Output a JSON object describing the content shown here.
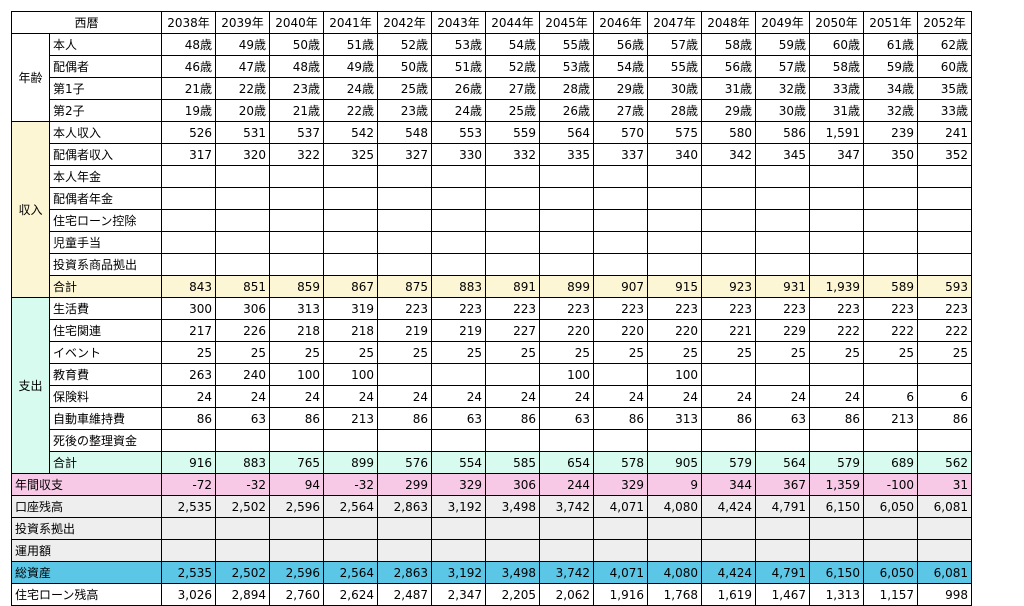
{
  "header": {
    "corner_label": "西暦",
    "years": [
      "2038年",
      "2039年",
      "2040年",
      "2041年",
      "2042年",
      "2043年",
      "2044年",
      "2045年",
      "2046年",
      "2047年",
      "2048年",
      "2049年",
      "2050年",
      "2051年",
      "2052年"
    ]
  },
  "age": {
    "group_label": "年齢",
    "rows": [
      {
        "label": "本人",
        "values": [
          "48歳",
          "49歳",
          "50歳",
          "51歳",
          "52歳",
          "53歳",
          "54歳",
          "55歳",
          "56歳",
          "57歳",
          "58歳",
          "59歳",
          "60歳",
          "61歳",
          "62歳"
        ]
      },
      {
        "label": "配偶者",
        "values": [
          "46歳",
          "47歳",
          "48歳",
          "49歳",
          "50歳",
          "51歳",
          "52歳",
          "53歳",
          "54歳",
          "55歳",
          "56歳",
          "57歳",
          "58歳",
          "59歳",
          "60歳"
        ]
      },
      {
        "label": "第1子",
        "values": [
          "21歳",
          "22歳",
          "23歳",
          "24歳",
          "25歳",
          "26歳",
          "27歳",
          "28歳",
          "29歳",
          "30歳",
          "31歳",
          "32歳",
          "33歳",
          "34歳",
          "35歳"
        ]
      },
      {
        "label": "第2子",
        "values": [
          "19歳",
          "20歳",
          "21歳",
          "22歳",
          "23歳",
          "24歳",
          "25歳",
          "26歳",
          "27歳",
          "28歳",
          "29歳",
          "30歳",
          "31歳",
          "32歳",
          "33歳"
        ]
      }
    ]
  },
  "income": {
    "group_label": "収入",
    "rows": [
      {
        "label": "本人収入",
        "values": [
          "526",
          "531",
          "537",
          "542",
          "548",
          "553",
          "559",
          "564",
          "570",
          "575",
          "580",
          "586",
          "1,591",
          "239",
          "241"
        ]
      },
      {
        "label": "配偶者収入",
        "values": [
          "317",
          "320",
          "322",
          "325",
          "327",
          "330",
          "332",
          "335",
          "337",
          "340",
          "342",
          "345",
          "347",
          "350",
          "352"
        ]
      },
      {
        "label": "本人年金",
        "values": [
          "",
          "",
          "",
          "",
          "",
          "",
          "",
          "",
          "",
          "",
          "",
          "",
          "",
          "",
          ""
        ]
      },
      {
        "label": "配偶者年金",
        "values": [
          "",
          "",
          "",
          "",
          "",
          "",
          "",
          "",
          "",
          "",
          "",
          "",
          "",
          "",
          ""
        ]
      },
      {
        "label": "住宅ローン控除",
        "values": [
          "",
          "",
          "",
          "",
          "",
          "",
          "",
          "",
          "",
          "",
          "",
          "",
          "",
          "",
          ""
        ]
      },
      {
        "label": "児童手当",
        "values": [
          "",
          "",
          "",
          "",
          "",
          "",
          "",
          "",
          "",
          "",
          "",
          "",
          "",
          "",
          ""
        ]
      },
      {
        "label": "投資系商品拠出",
        "values": [
          "",
          "",
          "",
          "",
          "",
          "",
          "",
          "",
          "",
          "",
          "",
          "",
          "",
          "",
          ""
        ]
      },
      {
        "label": "合計",
        "values": [
          "843",
          "851",
          "859",
          "867",
          "875",
          "883",
          "891",
          "899",
          "907",
          "915",
          "923",
          "931",
          "1,939",
          "589",
          "593"
        ]
      }
    ]
  },
  "expense": {
    "group_label": "支出",
    "rows": [
      {
        "label": "生活費",
        "values": [
          "300",
          "306",
          "313",
          "319",
          "223",
          "223",
          "223",
          "223",
          "223",
          "223",
          "223",
          "223",
          "223",
          "223",
          "223"
        ]
      },
      {
        "label": "住宅関連",
        "values": [
          "217",
          "226",
          "218",
          "218",
          "219",
          "219",
          "227",
          "220",
          "220",
          "220",
          "221",
          "229",
          "222",
          "222",
          "222"
        ]
      },
      {
        "label": "イベント",
        "values": [
          "25",
          "25",
          "25",
          "25",
          "25",
          "25",
          "25",
          "25",
          "25",
          "25",
          "25",
          "25",
          "25",
          "25",
          "25"
        ]
      },
      {
        "label": "教育費",
        "values": [
          "263",
          "240",
          "100",
          "100",
          "",
          "",
          "",
          "100",
          "",
          "100",
          "",
          "",
          "",
          "",
          ""
        ]
      },
      {
        "label": "保険料",
        "values": [
          "24",
          "24",
          "24",
          "24",
          "24",
          "24",
          "24",
          "24",
          "24",
          "24",
          "24",
          "24",
          "24",
          "6",
          "6"
        ]
      },
      {
        "label": "自動車維持費",
        "values": [
          "86",
          "63",
          "86",
          "213",
          "86",
          "63",
          "86",
          "63",
          "86",
          "313",
          "86",
          "63",
          "86",
          "213",
          "86"
        ]
      },
      {
        "label": "死後の整理資金",
        "values": [
          "",
          "",
          "",
          "",
          "",
          "",
          "",
          "",
          "",
          "",
          "",
          "",
          "",
          "",
          ""
        ]
      },
      {
        "label": "合計",
        "values": [
          "916",
          "883",
          "765",
          "899",
          "576",
          "554",
          "585",
          "654",
          "578",
          "905",
          "579",
          "564",
          "579",
          "689",
          "562"
        ]
      }
    ]
  },
  "summary": [
    {
      "label": "年間収支",
      "values": [
        "-72",
        "-32",
        "94",
        "-32",
        "299",
        "329",
        "306",
        "244",
        "329",
        "9",
        "344",
        "367",
        "1,359",
        "-100",
        "31"
      ]
    },
    {
      "label": "口座残高",
      "values": [
        "2,535",
        "2,502",
        "2,596",
        "2,564",
        "2,863",
        "3,192",
        "3,498",
        "3,742",
        "4,071",
        "4,080",
        "4,424",
        "4,791",
        "6,150",
        "6,050",
        "6,081"
      ]
    },
    {
      "label": "投資系拠出",
      "values": [
        "",
        "",
        "",
        "",
        "",
        "",
        "",
        "",
        "",
        "",
        "",
        "",
        "",
        "",
        ""
      ]
    },
    {
      "label": "運用額",
      "values": [
        "",
        "",
        "",
        "",
        "",
        "",
        "",
        "",
        "",
        "",
        "",
        "",
        "",
        "",
        ""
      ]
    },
    {
      "label": "総資産",
      "values": [
        "2,535",
        "2,502",
        "2,596",
        "2,564",
        "2,863",
        "3,192",
        "3,498",
        "3,742",
        "4,071",
        "4,080",
        "4,424",
        "4,791",
        "6,150",
        "6,050",
        "6,081"
      ]
    },
    {
      "label": "住宅ローン残高",
      "values": [
        "3,026",
        "2,894",
        "2,760",
        "2,624",
        "2,487",
        "2,347",
        "2,205",
        "2,062",
        "1,916",
        "1,768",
        "1,619",
        "1,467",
        "1,313",
        "1,157",
        "998"
      ]
    }
  ],
  "colors": {
    "income_bg": "#fdf6d4",
    "expense_bg": "#d7fbee",
    "balance_bg": "#f7c9e7",
    "grey_bg": "#eeeeee",
    "asset_bg": "#5bc6e6"
  }
}
